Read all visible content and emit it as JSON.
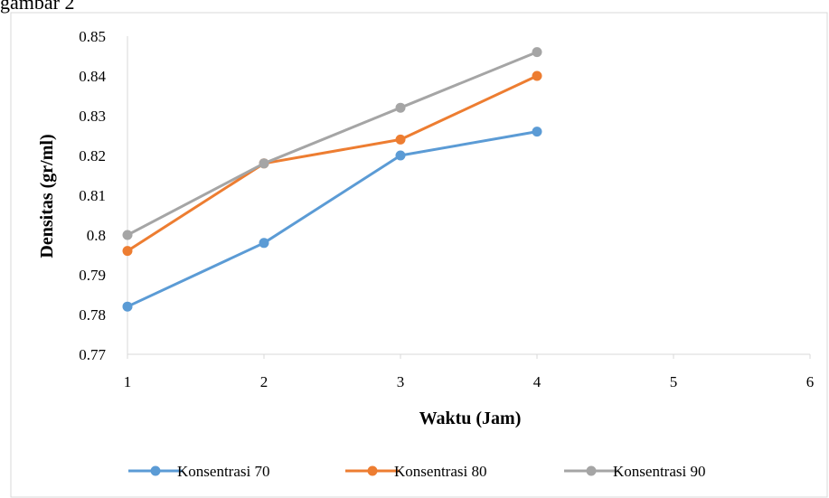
{
  "caption_text": "gambar 2",
  "chart_data": {
    "type": "line",
    "title": "",
    "xlabel": "Waktu (Jam)",
    "ylabel": "Densitas (gr/ml)",
    "x": [
      1,
      2,
      3,
      4
    ],
    "xlim": [
      1,
      6
    ],
    "xticks": [
      "1",
      "2",
      "3",
      "4",
      "5",
      "6"
    ],
    "ylim": [
      0.77,
      0.85
    ],
    "yticks": [
      "0.77",
      "0.78",
      "0.79",
      "0.8",
      "0.81",
      "0.82",
      "0.83",
      "0.84",
      "0.85"
    ],
    "grid": false,
    "legend_position": "bottom",
    "series": [
      {
        "name": "Konsentrasi 70",
        "color": "#5b9bd5",
        "values": [
          0.782,
          0.798,
          0.82,
          0.826
        ]
      },
      {
        "name": "Konsentrasi 80",
        "color": "#ed7d31",
        "values": [
          0.796,
          0.818,
          0.824,
          0.84
        ]
      },
      {
        "name": "Konsentrasi 90",
        "color": "#a5a5a5",
        "values": [
          0.8,
          0.818,
          0.832,
          0.846
        ]
      }
    ]
  }
}
